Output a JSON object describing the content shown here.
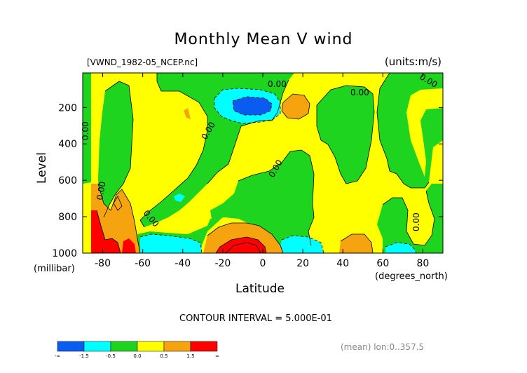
{
  "chart_data": {
    "type": "heatmap",
    "title": "Monthly Mean V wind",
    "dataset_label": "[VWND_1982-05_NCEP.nc]",
    "units_label": "(units:m/s)",
    "xlabel": "Latitude",
    "x_unit": "(degrees_north)",
    "ylabel": "Level",
    "y_unit": "(millibar)",
    "xlim": [
      -90,
      90
    ],
    "ylim": [
      1000,
      10
    ],
    "x_ticks": [
      -80,
      -60,
      -40,
      -20,
      0,
      20,
      40,
      60,
      80
    ],
    "x_tick_labels": [
      "-80",
      "-60",
      "-40",
      "-20",
      "0",
      "20",
      "40",
      "60",
      "80"
    ],
    "y_ticks": [
      200,
      400,
      600,
      800,
      1000
    ],
    "y_tick_labels": [
      "200",
      "400",
      "600",
      "800",
      "1000"
    ],
    "contour_interval_label": "CONTOUR INTERVAL = 5.000E-01",
    "average_note": "(mean) lon:0..357.5",
    "zero_contour_label": "0.00",
    "colorbar": {
      "bins": [
        {
          "from": "-∞",
          "to": -1.5,
          "color": "#0a5cf0"
        },
        {
          "from": -1.5,
          "to": -0.5,
          "color": "#00ffff"
        },
        {
          "from": -0.5,
          "to": 0.0,
          "color": "#1fd41f"
        },
        {
          "from": 0.0,
          "to": 0.5,
          "color": "#ffff00"
        },
        {
          "from": 0.5,
          "to": 1.5,
          "color": "#f5a30f"
        },
        {
          "from": 1.5,
          "to": "∞",
          "color": "#ff0000"
        }
      ],
      "tick_labels": [
        "-∞",
        "-1.5",
        "-0.5",
        "0.0",
        "0.5",
        "1.5",
        "∞"
      ]
    }
  }
}
